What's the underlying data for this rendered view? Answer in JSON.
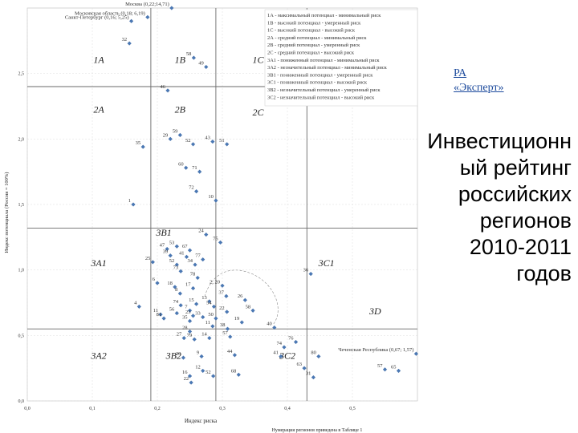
{
  "brand": {
    "line1": "РА",
    "line2": "«Эксперт»"
  },
  "headline": {
    "lines": [
      "Инвестиционн",
      "ый рейтинг",
      "российских",
      "регионов",
      "2010-2011",
      "годов"
    ]
  },
  "chart_data": {
    "type": "scatter",
    "xlabel": "Индекс риска",
    "ylabel": "Индекс потенциала (Россия = 100%)",
    "xlim": [
      0.0,
      0.6
    ],
    "ylim": [
      0.0,
      3.0
    ],
    "x_ticks": [
      {
        "value": 0.0,
        "label": "0,0"
      },
      {
        "value": 0.1,
        "label": "0,1"
      },
      {
        "value": 0.2,
        "label": "0,2"
      },
      {
        "value": 0.3,
        "label": "0,3"
      },
      {
        "value": 0.4,
        "label": "0,4"
      },
      {
        "value": 0.5,
        "label": "0,5"
      }
    ],
    "y_ticks": [
      {
        "value": 0.0,
        "label": "0,0"
      },
      {
        "value": 0.5,
        "label": "0,5"
      },
      {
        "value": 1.0,
        "label": "1,0"
      },
      {
        "value": 1.5,
        "label": "1,5"
      },
      {
        "value": 2.0,
        "label": "2,0"
      },
      {
        "value": 2.5,
        "label": "2,5"
      }
    ],
    "grid": true,
    "zone_lines": {
      "x": [
        0.19,
        0.29,
        0.43
      ],
      "y": [
        0.55,
        1.32,
        2.4
      ]
    },
    "zones": [
      {
        "label": "1A",
        "x": 0.11,
        "y": 2.58
      },
      {
        "label": "1B",
        "x": 0.235,
        "y": 2.58
      },
      {
        "label": "1C",
        "x": 0.355,
        "y": 2.58
      },
      {
        "label": "2A",
        "x": 0.11,
        "y": 2.2
      },
      {
        "label": "2B",
        "x": 0.235,
        "y": 2.2
      },
      {
        "label": "2C",
        "x": 0.355,
        "y": 2.18
      },
      {
        "label": "3B1",
        "x": 0.21,
        "y": 1.26
      },
      {
        "label": "3A1",
        "x": 0.11,
        "y": 1.03
      },
      {
        "label": "3C1",
        "x": 0.46,
        "y": 1.03
      },
      {
        "label": "3D",
        "x": 0.535,
        "y": 0.66
      },
      {
        "label": "3A2",
        "x": 0.11,
        "y": 0.32
      },
      {
        "label": "3B2",
        "x": 0.225,
        "y": 0.32
      },
      {
        "label": "3C2",
        "x": 0.4,
        "y": 0.32
      }
    ],
    "points": [
      {
        "label": "Москва (0,22;14,71)",
        "x": 0.222,
        "y": 3.0
      },
      {
        "label": "Московская область (0,18; 6,19)",
        "x": 0.185,
        "y": 2.93
      },
      {
        "label": "Санкт-Петербург (0,16; 5,25)",
        "x": 0.16,
        "y": 2.9
      },
      {
        "label": "32",
        "x": 0.157,
        "y": 2.73
      },
      {
        "label": "58",
        "x": 0.256,
        "y": 2.62
      },
      {
        "label": "49",
        "x": 0.275,
        "y": 2.55
      },
      {
        "label": "46",
        "x": 0.216,
        "y": 2.37
      },
      {
        "label": "59",
        "x": 0.235,
        "y": 2.03
      },
      {
        "label": "29",
        "x": 0.22,
        "y": 2.0
      },
      {
        "label": "43",
        "x": 0.285,
        "y": 1.98
      },
      {
        "label": "51",
        "x": 0.307,
        "y": 1.96
      },
      {
        "label": "52",
        "x": 0.255,
        "y": 1.96
      },
      {
        "label": "35",
        "x": 0.178,
        "y": 1.94
      },
      {
        "label": "60",
        "x": 0.244,
        "y": 1.78
      },
      {
        "label": "71",
        "x": 0.265,
        "y": 1.75
      },
      {
        "label": "72",
        "x": 0.26,
        "y": 1.6
      },
      {
        "label": "10",
        "x": 0.29,
        "y": 1.53
      },
      {
        "label": "1",
        "x": 0.163,
        "y": 1.5
      },
      {
        "label": "24",
        "x": 0.275,
        "y": 1.27
      },
      {
        "label": "75",
        "x": 0.297,
        "y": 1.21
      },
      {
        "label": "53",
        "x": 0.23,
        "y": 1.18
      },
      {
        "label": "67",
        "x": 0.25,
        "y": 1.15
      },
      {
        "label": "47",
        "x": 0.215,
        "y": 1.16
      },
      {
        "label": "39",
        "x": 0.22,
        "y": 1.11
      },
      {
        "label": "41",
        "x": 0.245,
        "y": 1.1
      },
      {
        "label": "77",
        "x": 0.27,
        "y": 1.08
      },
      {
        "label": "25",
        "x": 0.193,
        "y": 1.06
      },
      {
        "label": "52",
        "x": 0.23,
        "y": 1.04
      },
      {
        "label": "34",
        "x": 0.258,
        "y": 1.04
      },
      {
        "label": "73",
        "x": 0.236,
        "y": 0.99
      },
      {
        "label": "78",
        "x": 0.262,
        "y": 0.94
      },
      {
        "label": "6",
        "x": 0.2,
        "y": 0.9
      },
      {
        "label": "18",
        "x": 0.227,
        "y": 0.87
      },
      {
        "label": "2, 20",
        "x": 0.3,
        "y": 0.88
      },
      {
        "label": "17",
        "x": 0.255,
        "y": 0.86
      },
      {
        "label": "8",
        "x": 0.235,
        "y": 0.82
      },
      {
        "label": "36",
        "x": 0.436,
        "y": 0.97
      },
      {
        "label": "13",
        "x": 0.28,
        "y": 0.76
      },
      {
        "label": "37",
        "x": 0.306,
        "y": 0.8
      },
      {
        "label": "26",
        "x": 0.335,
        "y": 0.77
      },
      {
        "label": "15",
        "x": 0.26,
        "y": 0.74
      },
      {
        "label": "74",
        "x": 0.236,
        "y": 0.73
      },
      {
        "label": "54",
        "x": 0.287,
        "y": 0.72
      },
      {
        "label": "4",
        "x": 0.172,
        "y": 0.72
      },
      {
        "label": "7",
        "x": 0.25,
        "y": 0.69
      },
      {
        "label": "58",
        "x": 0.347,
        "y": 0.69
      },
      {
        "label": "22",
        "x": 0.307,
        "y": 0.68
      },
      {
        "label": "11",
        "x": 0.205,
        "y": 0.66
      },
      {
        "label": "56",
        "x": 0.23,
        "y": 0.67
      },
      {
        "label": "23",
        "x": 0.255,
        "y": 0.65
      },
      {
        "label": "33",
        "x": 0.27,
        "y": 0.64
      },
      {
        "label": "50",
        "x": 0.29,
        "y": 0.63
      },
      {
        "label": "81",
        "x": 0.21,
        "y": 0.63
      },
      {
        "label": "35",
        "x": 0.25,
        "y": 0.61
      },
      {
        "label": "19",
        "x": 0.33,
        "y": 0.6
      },
      {
        "label": "11",
        "x": 0.285,
        "y": 0.57
      },
      {
        "label": "38",
        "x": 0.308,
        "y": 0.55
      },
      {
        "label": "40",
        "x": 0.38,
        "y": 0.56
      },
      {
        "label": "28",
        "x": 0.25,
        "y": 0.53
      },
      {
        "label": "57",
        "x": 0.312,
        "y": 0.49
      },
      {
        "label": "27",
        "x": 0.241,
        "y": 0.48
      },
      {
        "label": "79",
        "x": 0.257,
        "y": 0.47
      },
      {
        "label": "14",
        "x": 0.28,
        "y": 0.48
      },
      {
        "label": "Чеченская Республика (0,67; 1,57)",
        "x": 0.598,
        "y": 0.36
      },
      {
        "label": "76",
        "x": 0.413,
        "y": 0.45
      },
      {
        "label": "74",
        "x": 0.395,
        "y": 0.41
      },
      {
        "label": "20",
        "x": 0.24,
        "y": 0.33
      },
      {
        "label": "9",
        "x": 0.268,
        "y": 0.34
      },
      {
        "label": "44",
        "x": 0.319,
        "y": 0.35
      },
      {
        "label": "80",
        "x": 0.448,
        "y": 0.34
      },
      {
        "label": "41",
        "x": 0.39,
        "y": 0.34
      },
      {
        "label": "57",
        "x": 0.55,
        "y": 0.24
      },
      {
        "label": "65",
        "x": 0.571,
        "y": 0.23
      },
      {
        "label": "63",
        "x": 0.426,
        "y": 0.25
      },
      {
        "label": "31",
        "x": 0.44,
        "y": 0.18
      },
      {
        "label": "16",
        "x": 0.25,
        "y": 0.19
      },
      {
        "label": "12",
        "x": 0.27,
        "y": 0.23
      },
      {
        "label": "52",
        "x": 0.286,
        "y": 0.19
      },
      {
        "label": "22",
        "x": 0.252,
        "y": 0.14
      },
      {
        "label": "68",
        "x": 0.325,
        "y": 0.2
      }
    ],
    "legend": {
      "placement": "top-right",
      "entries": [
        "1А - максимальный потенциал - минимальный риск",
        "1В - высокий потенциал - умеренный риск",
        "1С - высокий потенциал - высокий риск",
        "2А - средний потенциал - минимальный риск",
        "2В - средний потенциал - умеренный риск",
        "2С - средний потенциал - высокий риск",
        "3А1 - пониженный потенциал - минимальный риск",
        "3А2 - незначительный потенциал - минимальный риск",
        "3В1 - пониженный потенциал - умеренный риск",
        "3С1 - пониженный потенциал - высокий риск",
        "3В2 - незначительный потенциал - умеренный риск",
        "3С2 - незначительный потенциал - высокий риск"
      ]
    },
    "footer_note": "Нумерация регионов приведена в Таблице 1"
  }
}
